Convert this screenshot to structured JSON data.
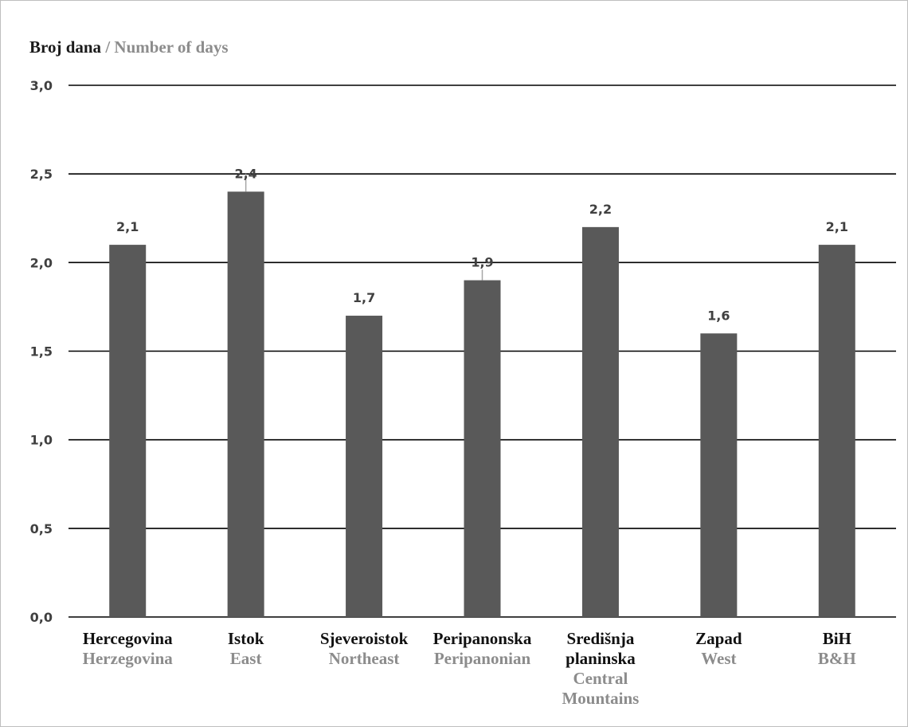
{
  "chart_data": {
    "type": "bar",
    "title": "",
    "ylabel": "Broj dana",
    "ylabel_en": "Number of days",
    "ylabel_separator": " / ",
    "ylim": [
      0,
      3
    ],
    "yticks": [
      0,
      0.5,
      1.0,
      1.5,
      2.0,
      2.5,
      3.0
    ],
    "ytick_labels": [
      "0,0",
      "0,5",
      "1,0",
      "1,5",
      "2,0",
      "2,5",
      "3,0"
    ],
    "grid": true,
    "legend": "none",
    "categories": [
      {
        "bs": [
          "Hercegovina"
        ],
        "en": [
          "Herzegovina"
        ]
      },
      {
        "bs": [
          "Istok"
        ],
        "en": [
          "East"
        ]
      },
      {
        "bs": [
          "Sjeveroistok"
        ],
        "en": [
          "Northeast"
        ]
      },
      {
        "bs": [
          "Peripanonska"
        ],
        "en": [
          "Peripanonian"
        ]
      },
      {
        "bs": [
          "Središnja",
          "planinska"
        ],
        "en": [
          "Central",
          "Mountains"
        ]
      },
      {
        "bs": [
          "Zapad"
        ],
        "en": [
          "West"
        ]
      },
      {
        "bs": [
          "BiH"
        ],
        "en": [
          "B&H"
        ]
      }
    ],
    "values": [
      2.1,
      2.4,
      1.7,
      1.9,
      2.2,
      1.6,
      2.1
    ],
    "value_labels": [
      "2,1",
      "2,4",
      "1,7",
      "1,9",
      "2,2",
      "1,6",
      "2,1"
    ],
    "error_bars": [
      null,
      0.1,
      null,
      0.06,
      null,
      null,
      null
    ],
    "colors": {
      "bar": "#595959",
      "grid": "#000000",
      "error": "#a6a6a6"
    }
  }
}
